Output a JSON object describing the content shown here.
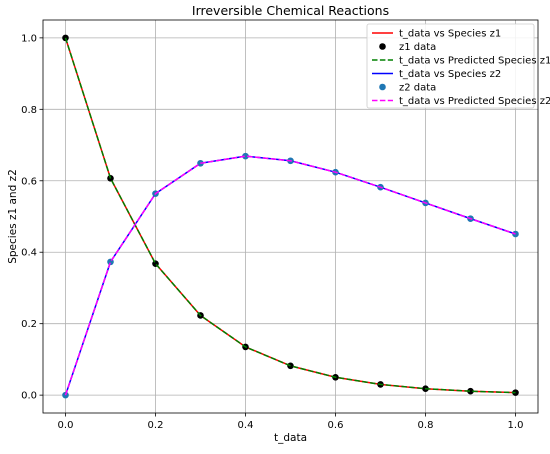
{
  "chart_data": {
    "type": "line",
    "title": "Irreversible Chemical Reactions",
    "xlabel": "t_data",
    "ylabel": "Species z1 and z2",
    "xlim": [
      -0.05,
      1.05
    ],
    "ylim": [
      -0.05,
      1.05
    ],
    "xticks": [
      0.0,
      0.2,
      0.4,
      0.6,
      0.8,
      1.0
    ],
    "xtick_labels": [
      "0.0",
      "0.2",
      "0.4",
      "0.6",
      "0.8",
      "1.0"
    ],
    "yticks": [
      0.0,
      0.2,
      0.4,
      0.6,
      0.8,
      1.0
    ],
    "ytick_labels": [
      "0.0",
      "0.2",
      "0.4",
      "0.6",
      "0.8",
      "1.0"
    ],
    "grid": true,
    "legend_position": "top-right",
    "x": [
      0.0,
      0.1,
      0.2,
      0.3,
      0.4,
      0.5,
      0.6,
      0.7,
      0.8,
      0.9,
      1.0
    ],
    "series": [
      {
        "name": "t_data vs Species z1",
        "kind": "line",
        "style": "solid",
        "color": "#ff0000",
        "values": [
          1.0,
          0.607,
          0.368,
          0.223,
          0.135,
          0.082,
          0.05,
          0.03,
          0.018,
          0.011,
          0.007
        ]
      },
      {
        "name": "z1 data",
        "kind": "scatter",
        "color": "#000000",
        "values": [
          1.0,
          0.607,
          0.368,
          0.223,
          0.135,
          0.082,
          0.05,
          0.03,
          0.018,
          0.011,
          0.007
        ]
      },
      {
        "name": "t_data vs Predicted Species z1",
        "kind": "line",
        "style": "dashed",
        "color": "#008000",
        "values": [
          1.0,
          0.607,
          0.368,
          0.223,
          0.135,
          0.082,
          0.05,
          0.03,
          0.018,
          0.011,
          0.007
        ]
      },
      {
        "name": "t_data vs Species z2",
        "kind": "line",
        "style": "solid",
        "color": "#0000ff",
        "values": [
          0.0,
          0.373,
          0.564,
          0.649,
          0.669,
          0.656,
          0.624,
          0.582,
          0.538,
          0.494,
          0.451
        ]
      },
      {
        "name": "z2 data",
        "kind": "scatter",
        "color": "#1f77b4",
        "values": [
          0.0,
          0.373,
          0.564,
          0.649,
          0.669,
          0.656,
          0.624,
          0.582,
          0.538,
          0.494,
          0.451
        ]
      },
      {
        "name": "t_data vs Predicted Species z2",
        "kind": "line",
        "style": "dashed",
        "color": "#ff00ff",
        "values": [
          0.0,
          0.373,
          0.564,
          0.649,
          0.669,
          0.656,
          0.624,
          0.582,
          0.538,
          0.494,
          0.451
        ]
      }
    ]
  }
}
